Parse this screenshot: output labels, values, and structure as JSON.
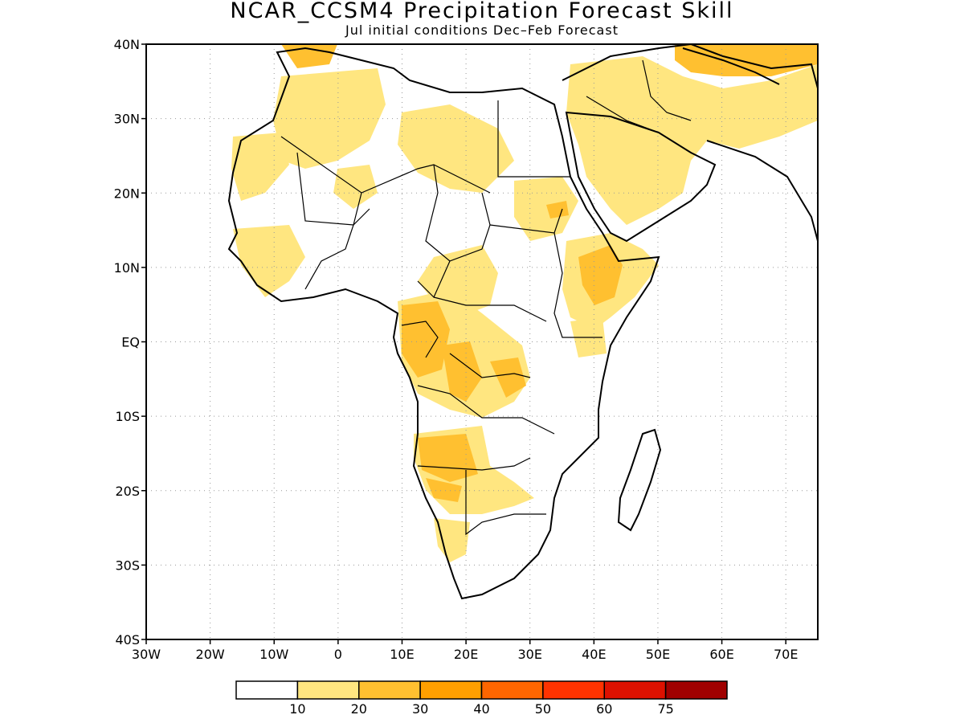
{
  "title": "NCAR_CCSM4 Precipitation Forecast Skill",
  "subtitle": "Jul initial conditions   Dec–Feb Forecast",
  "map": {
    "region": "Africa and Arabian Peninsula",
    "lon_range": [
      -30,
      75
    ],
    "lat_range": [
      -40,
      40
    ],
    "lat_ticks": [
      "40N",
      "30N",
      "20N",
      "10N",
      "EQ",
      "10S",
      "20S",
      "30S",
      "40S"
    ],
    "lon_ticks": [
      "30W",
      "20W",
      "10W",
      "0",
      "10E",
      "20E",
      "30E",
      "40E",
      "50E",
      "60E",
      "70E"
    ],
    "grid": "dotted"
  },
  "legend": {
    "labels": [
      "10",
      "20",
      "30",
      "40",
      "50",
      "60",
      "75"
    ],
    "colors": [
      "#ffffff",
      "#ffe680",
      "#ffc030",
      "#ff9f00",
      "#ff6600",
      "#ff3300",
      "#dd1100",
      "#a00000"
    ]
  }
}
